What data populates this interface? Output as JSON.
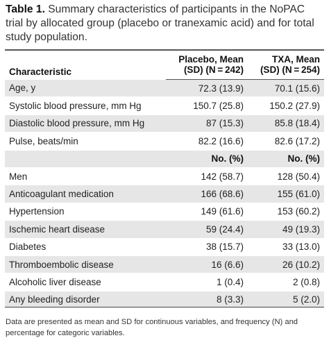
{
  "caption": {
    "label": "Table 1.",
    "text": "Summary characteristics of participants in the NoPAC trial by allocated group (placebo or tranexamic acid) and for total study population."
  },
  "table": {
    "headers": {
      "characteristic": "Characteristic",
      "placebo_line1": "Placebo, Mean",
      "placebo_line2": "(SD) (N = 242)",
      "txa_line1": "TXA, Mean",
      "txa_line2": "(SD) (N = 254)"
    },
    "continuous_rows": [
      {
        "label": "Age, y",
        "placebo": "72.3 (13.9)",
        "txa": "70.1 (15.6)"
      },
      {
        "label": "Systolic blood pressure, mm Hg",
        "placebo": "150.7 (25.8)",
        "txa": "150.2 (27.9)"
      },
      {
        "label": "Diastolic blood pressure, mm Hg",
        "placebo": "87 (15.3)",
        "txa": "85.8 (18.4)"
      },
      {
        "label": "Pulse, beats/min",
        "placebo": "82.2 (16.6)",
        "txa": "82.6 (17.2)"
      }
    ],
    "subheader": {
      "placebo": "No. (%)",
      "txa": "No. (%)"
    },
    "categorical_rows": [
      {
        "label": "Men",
        "placebo": "142 (58.7)",
        "txa": "128 (50.4)"
      },
      {
        "label": "Anticoagulant medication",
        "placebo": "166 (68.6)",
        "txa": "155 (61.0)"
      },
      {
        "label": "Hypertension",
        "placebo": "149 (61.6)",
        "txa": "153 (60.2)"
      },
      {
        "label": "Ischemic heart disease",
        "placebo": "59 (24.4)",
        "txa": "49 (19.3)"
      },
      {
        "label": "Diabetes",
        "placebo": "38 (15.7)",
        "txa": "33 (13.0)"
      },
      {
        "label": "Thromboembolic disease",
        "placebo": "16 (6.6)",
        "txa": "26 (10.2)"
      },
      {
        "label": "Alcoholic liver disease",
        "placebo": "1 (0.4)",
        "txa": "2 (0.8)"
      },
      {
        "label": "Any bleeding disorder",
        "placebo": "8 (3.3)",
        "txa": "5 (2.0)"
      }
    ]
  },
  "footnote": "Data are presented as mean and SD for continuous variables, and frequency (N) and percentage for categoric variables."
}
